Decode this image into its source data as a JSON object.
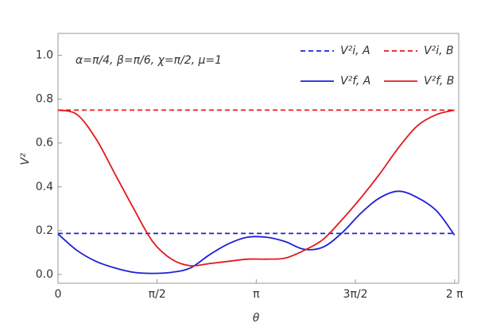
{
  "chart_data": {
    "type": "line",
    "annotation": "α=π/4, β=π/6, χ=π/2, μ=1",
    "x_label": "θ",
    "y_label": "V²",
    "xlim": [
      0,
      6.35
    ],
    "ylim": [
      -0.04,
      1.1
    ],
    "xticks": [
      0,
      {
        "value": 1.5708,
        "label": "π/2"
      },
      {
        "value": 3.1416,
        "label": "π"
      },
      {
        "value": 4.7124,
        "label": "3π/2"
      },
      {
        "value": 6.2832,
        "label": "2 π"
      }
    ],
    "yticks": [
      {
        "value": 0,
        "label": "0.0"
      },
      0.2,
      0.4,
      0.6,
      0.8,
      {
        "value": 1,
        "label": "1.0"
      }
    ],
    "legend": "upper right",
    "x": [
      0,
      0.3,
      0.6,
      0.9,
      1.2,
      1.5,
      1.8,
      2.1,
      2.4,
      2.7,
      3.0,
      3.3,
      3.6,
      3.9,
      4.2,
      4.5,
      4.8,
      5.1,
      5.4,
      5.7,
      6.0,
      6.2832
    ],
    "series": [
      {
        "name": "V²i, A",
        "color": "#1f1fd6",
        "dashed": true,
        "values": [
          0.1875,
          0.1875,
          0.1875,
          0.1875,
          0.1875,
          0.1875,
          0.1875,
          0.1875,
          0.1875,
          0.1875,
          0.1875,
          0.1875,
          0.1875,
          0.1875,
          0.1875,
          0.1875,
          0.1875,
          0.1875,
          0.1875,
          0.1875,
          0.1875,
          0.1875
        ]
      },
      {
        "name": "V²i, B",
        "color": "#e4191c",
        "dashed": true,
        "values": [
          0.75,
          0.75,
          0.75,
          0.75,
          0.75,
          0.75,
          0.75,
          0.75,
          0.75,
          0.75,
          0.75,
          0.75,
          0.75,
          0.75,
          0.75,
          0.75,
          0.75,
          0.75,
          0.75,
          0.75,
          0.75,
          0.75
        ]
      },
      {
        "name": "V²f, A",
        "color": "#1f1fd6",
        "dashed": false,
        "values": [
          0.185,
          0.11,
          0.06,
          0.03,
          0.01,
          0.005,
          0.01,
          0.03,
          0.09,
          0.14,
          0.17,
          0.17,
          0.15,
          0.115,
          0.125,
          0.19,
          0.28,
          0.35,
          0.38,
          0.35,
          0.29,
          0.18
        ]
      },
      {
        "name": "V²f, B",
        "color": "#e4191c",
        "dashed": false,
        "values": [
          0.75,
          0.73,
          0.62,
          0.46,
          0.3,
          0.15,
          0.07,
          0.04,
          0.05,
          0.06,
          0.07,
          0.07,
          0.075,
          0.11,
          0.16,
          0.25,
          0.35,
          0.46,
          0.58,
          0.68,
          0.73,
          0.75
        ]
      }
    ]
  }
}
